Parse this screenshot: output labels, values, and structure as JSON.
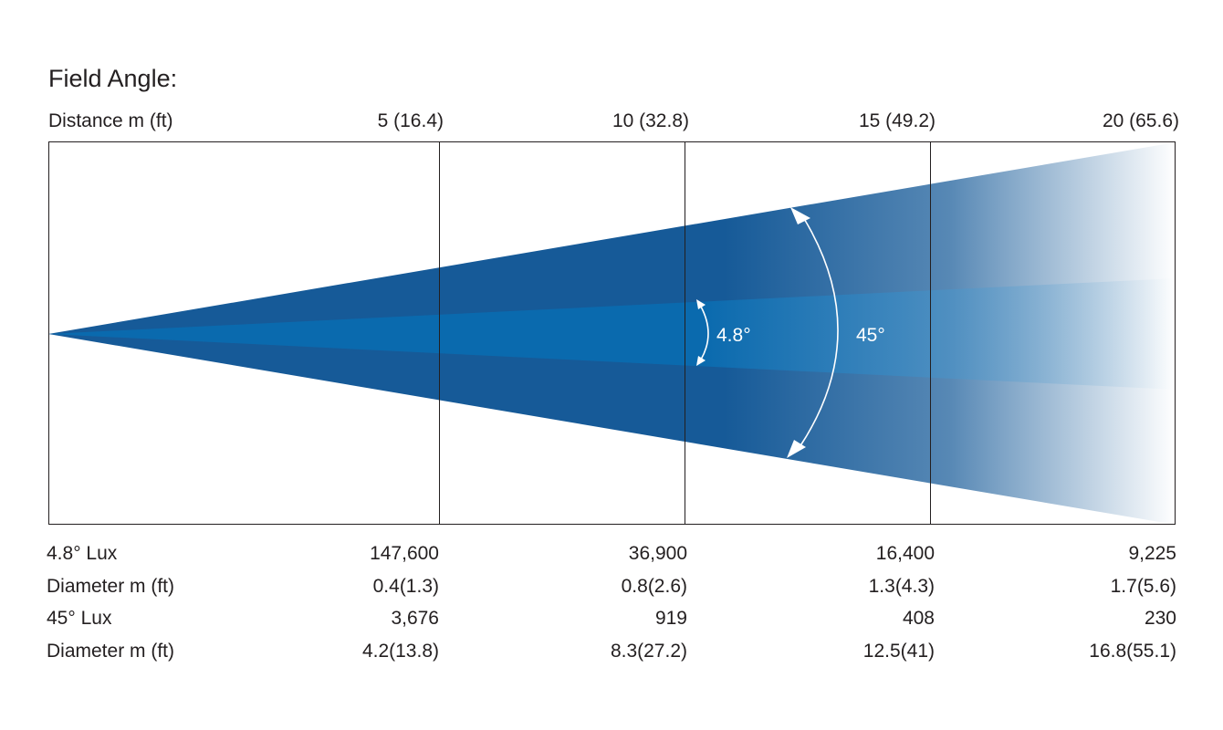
{
  "title": "Field Angle:",
  "distance_label": "Distance m (ft)",
  "distances": [
    "5 (16.4)",
    "10 (32.8)",
    "15 (49.2)",
    "20 (65.6)"
  ],
  "angles": {
    "narrow": "4.8°",
    "wide": "45°"
  },
  "colors": {
    "beam_outer": "#165a98",
    "beam_inner": "#0a6aae",
    "grid_line": "#231f20",
    "angle_marker": "#ffffff"
  },
  "rows": [
    {
      "label": "4.8° Lux",
      "values": [
        "147,600",
        "36,900",
        "16,400",
        "9,225"
      ]
    },
    {
      "label": "Diameter  m (ft)",
      "values": [
        "0.4(1.3)",
        "0.8(2.6)",
        "1.3(4.3)",
        "1.7(5.6)"
      ]
    },
    {
      "label": "45° Lux",
      "values": [
        "3,676",
        "919",
        "408",
        "230"
      ]
    },
    {
      "label": "Diameter  m (ft)",
      "values": [
        "4.2(13.8)",
        "8.3(27.2)",
        "12.5(41)",
        "16.8(55.1)"
      ]
    }
  ]
}
